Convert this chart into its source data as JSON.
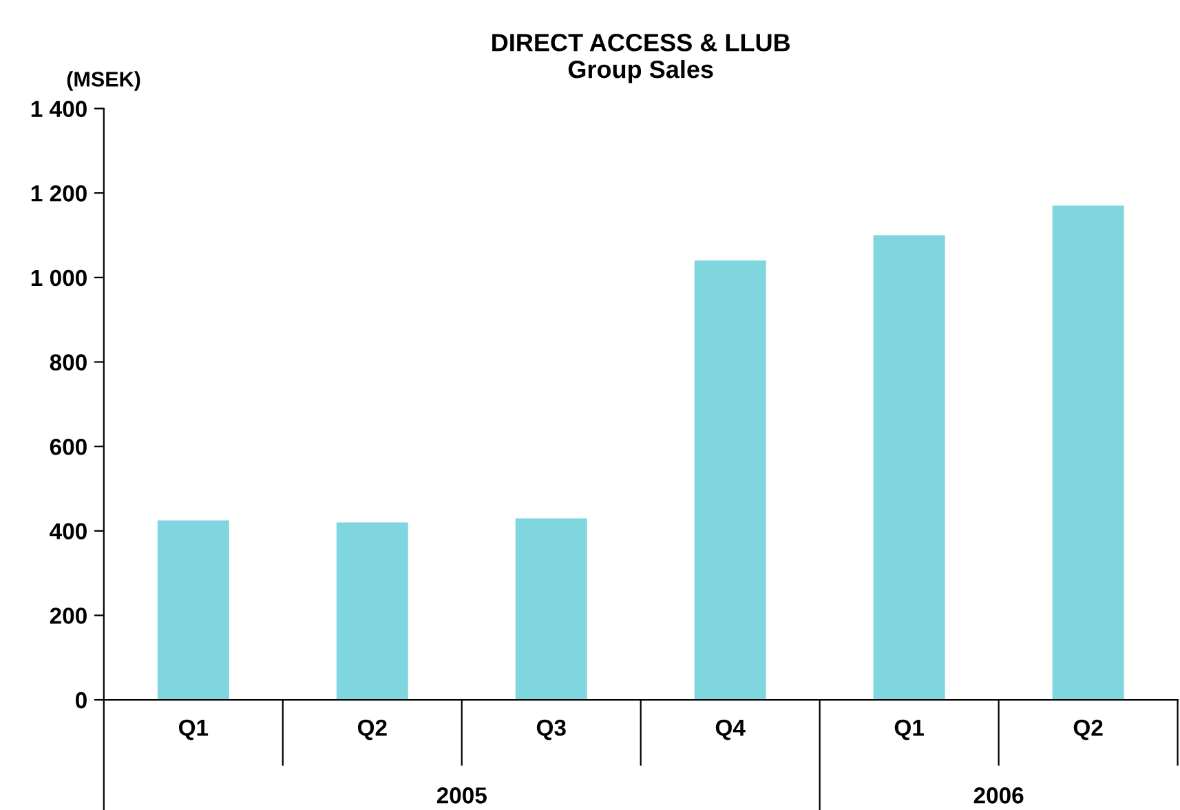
{
  "chart_data": {
    "type": "bar",
    "title": "DIRECT ACCESS & LLUB\nGroup Sales",
    "ylabel": "(MSEK)",
    "categories": [
      "Q1",
      "Q2",
      "Q3",
      "Q4",
      "Q1",
      "Q2"
    ],
    "values": [
      425,
      420,
      430,
      1040,
      1100,
      1170
    ],
    "color": "#7fd6de",
    "ylim": [
      0,
      1400
    ],
    "yticks": [
      0,
      200,
      400,
      600,
      800,
      {
        "value": 1000,
        "label": "1 000"
      },
      {
        "value": 1200,
        "label": "1 200"
      },
      {
        "value": 1400,
        "label": "1 400"
      }
    ],
    "annotations": [
      "2005",
      "2006"
    ],
    "grid": false
  }
}
